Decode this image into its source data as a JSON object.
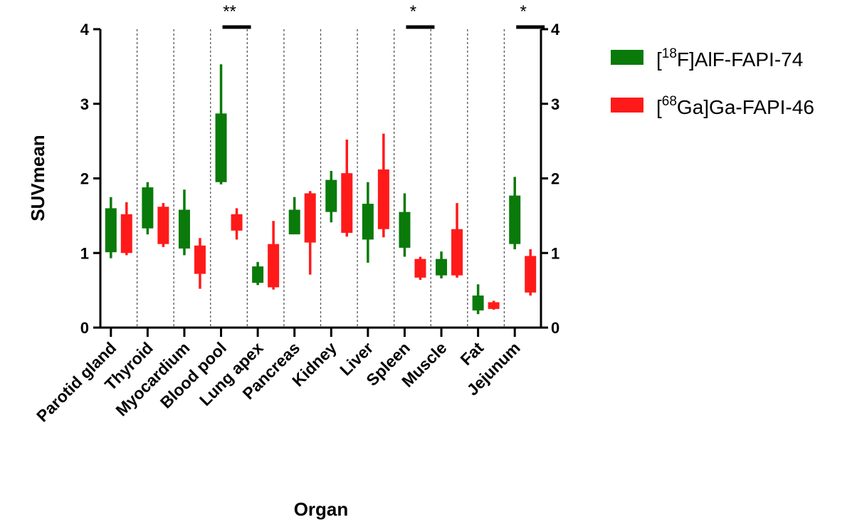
{
  "chart_data": {
    "type": "box",
    "xlabel": "Organ",
    "ylabel": "SUVmean",
    "ylim": [
      0,
      4
    ],
    "y_ticks": [
      "0",
      "1",
      "2",
      "3",
      "4"
    ],
    "right_axis": true,
    "legend_position": "right",
    "categories": [
      "Parotid gland",
      "Thyroid",
      "Myocardium",
      "Blood pool",
      "Lung apex",
      "Pancreas",
      "Kidney",
      "Liver",
      "Spleen",
      "Muscle",
      "Fat",
      "Jejunum"
    ],
    "series": [
      {
        "color": "#0a7a0a",
        "legend": {
          "pre": "[",
          "sup": "18",
          "post": "F]AlF-FAPI-74"
        },
        "boxes": [
          {
            "min": 0.93,
            "q1": 1.01,
            "q3": 1.6,
            "max": 1.75
          },
          {
            "min": 1.25,
            "q1": 1.33,
            "q3": 1.88,
            "max": 1.95
          },
          {
            "min": 0.97,
            "q1": 1.06,
            "q3": 1.58,
            "max": 1.85
          },
          {
            "min": 1.92,
            "q1": 1.95,
            "q3": 2.87,
            "max": 3.53
          },
          {
            "min": 0.57,
            "q1": 0.6,
            "q3": 0.82,
            "max": 0.88
          },
          {
            "min": 1.25,
            "q1": 1.25,
            "q3": 1.58,
            "max": 1.75
          },
          {
            "min": 1.41,
            "q1": 1.55,
            "q3": 1.98,
            "max": 2.1
          },
          {
            "min": 0.87,
            "q1": 1.18,
            "q3": 1.66,
            "max": 1.95
          },
          {
            "min": 0.95,
            "q1": 1.07,
            "q3": 1.55,
            "max": 1.8
          },
          {
            "min": 0.66,
            "q1": 0.7,
            "q3": 0.92,
            "max": 1.02
          },
          {
            "min": 0.18,
            "q1": 0.23,
            "q3": 0.43,
            "max": 0.58
          },
          {
            "min": 1.05,
            "q1": 1.12,
            "q3": 1.77,
            "max": 2.02
          }
        ]
      },
      {
        "color": "#ff1a1a",
        "legend": {
          "pre": "[",
          "sup": "68",
          "post": "Ga]Ga-FAPI-46"
        },
        "boxes": [
          {
            "min": 0.97,
            "q1": 1.0,
            "q3": 1.52,
            "max": 1.68
          },
          {
            "min": 1.08,
            "q1": 1.12,
            "q3": 1.62,
            "max": 1.67
          },
          {
            "min": 0.52,
            "q1": 0.72,
            "q3": 1.1,
            "max": 1.2
          },
          {
            "min": 1.18,
            "q1": 1.3,
            "q3": 1.52,
            "max": 1.6
          },
          {
            "min": 0.51,
            "q1": 0.54,
            "q3": 1.12,
            "max": 1.43
          },
          {
            "min": 0.71,
            "q1": 1.14,
            "q3": 1.8,
            "max": 1.83
          },
          {
            "min": 1.22,
            "q1": 1.27,
            "q3": 2.07,
            "max": 2.52
          },
          {
            "min": 1.21,
            "q1": 1.32,
            "q3": 2.12,
            "max": 2.6
          },
          {
            "min": 0.64,
            "q1": 0.67,
            "q3": 0.92,
            "max": 0.95
          },
          {
            "min": 0.67,
            "q1": 0.7,
            "q3": 1.32,
            "max": 1.67
          },
          {
            "min": 0.24,
            "q1": 0.25,
            "q3": 0.34,
            "max": 0.36
          },
          {
            "min": 0.43,
            "q1": 0.47,
            "q3": 0.96,
            "max": 1.05
          }
        ]
      }
    ],
    "significance": [
      {
        "category_index": 3,
        "label": "**"
      },
      {
        "category_index": 8,
        "label": "*"
      },
      {
        "category_index": 11,
        "label": "*"
      }
    ]
  }
}
